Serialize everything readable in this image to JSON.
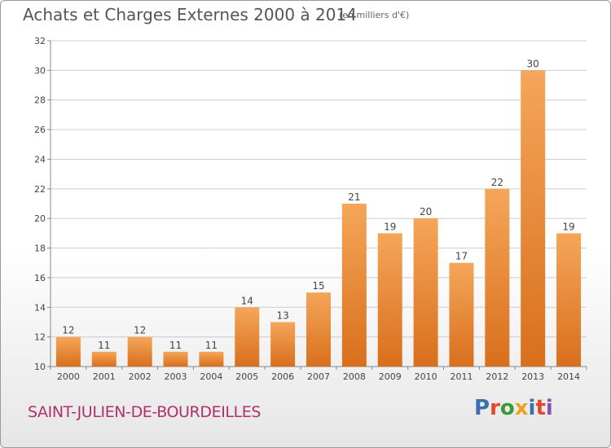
{
  "header": {
    "title": "Achats et Charges Externes 2000 à 2014",
    "subtitle": "(en milliers d'€)"
  },
  "footer": {
    "commune": "SAINT-JULIEN-DE-BOURDEILLES",
    "logo_text": "Proxiti",
    "logo_colors": [
      "#3a6fb0",
      "#e0492b",
      "#3a9a3a",
      "#f0a020",
      "#3a6fb0",
      "#e0492b",
      "#8a4fb0"
    ]
  },
  "chart_data": {
    "type": "bar",
    "categories": [
      "2000",
      "2001",
      "2002",
      "2003",
      "2004",
      "2005",
      "2006",
      "2007",
      "2008",
      "2009",
      "2010",
      "2011",
      "2012",
      "2013",
      "2014"
    ],
    "values": [
      12,
      11,
      12,
      11,
      11,
      14,
      13,
      15,
      21,
      19,
      20,
      17,
      22,
      30,
      19
    ],
    "title": "Achats et Charges Externes 2000 à 2014",
    "xlabel": "",
    "ylabel": "",
    "ylim": [
      10,
      32
    ],
    "yticks": [
      10,
      12,
      14,
      16,
      18,
      20,
      22,
      24,
      26,
      28,
      30,
      32
    ],
    "grid": true,
    "bar_color_top": "#f5a65a",
    "bar_color_bottom": "#d86f1c"
  }
}
